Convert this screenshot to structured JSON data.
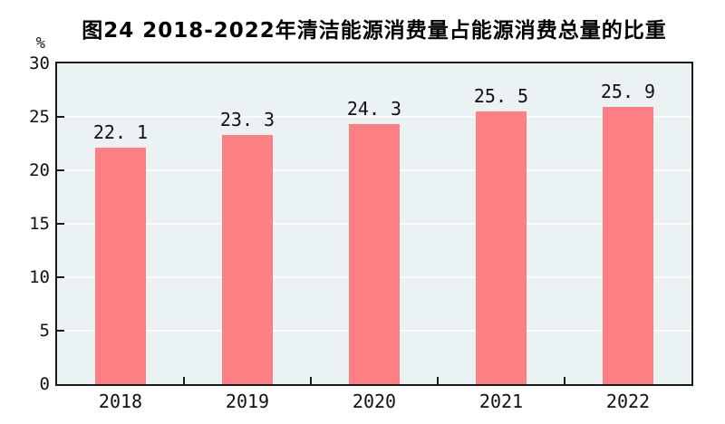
{
  "chart_data": {
    "type": "bar",
    "title": "图24  2018-2022年清洁能源消费量占能源消费总量的比重",
    "unit_label": "%",
    "categories": [
      "2018",
      "2019",
      "2020",
      "2021",
      "2022"
    ],
    "values": [
      22.1,
      23.3,
      24.3,
      25.5,
      25.9
    ],
    "value_labels": [
      "22. 1",
      "23. 3",
      "24. 3",
      "25. 5",
      "25. 9"
    ],
    "xlabel": "",
    "ylabel": "%",
    "ylim": [
      0,
      30
    ],
    "y_ticks": [
      0,
      5,
      10,
      15,
      20,
      25,
      30
    ],
    "grid": true,
    "legend": "none",
    "colors": {
      "bar": "#FB7F83",
      "plot_background": "#EBF2F4",
      "grid_line": "#FAFCFD",
      "axis": "#1A1A1A",
      "text": "#111111"
    }
  }
}
